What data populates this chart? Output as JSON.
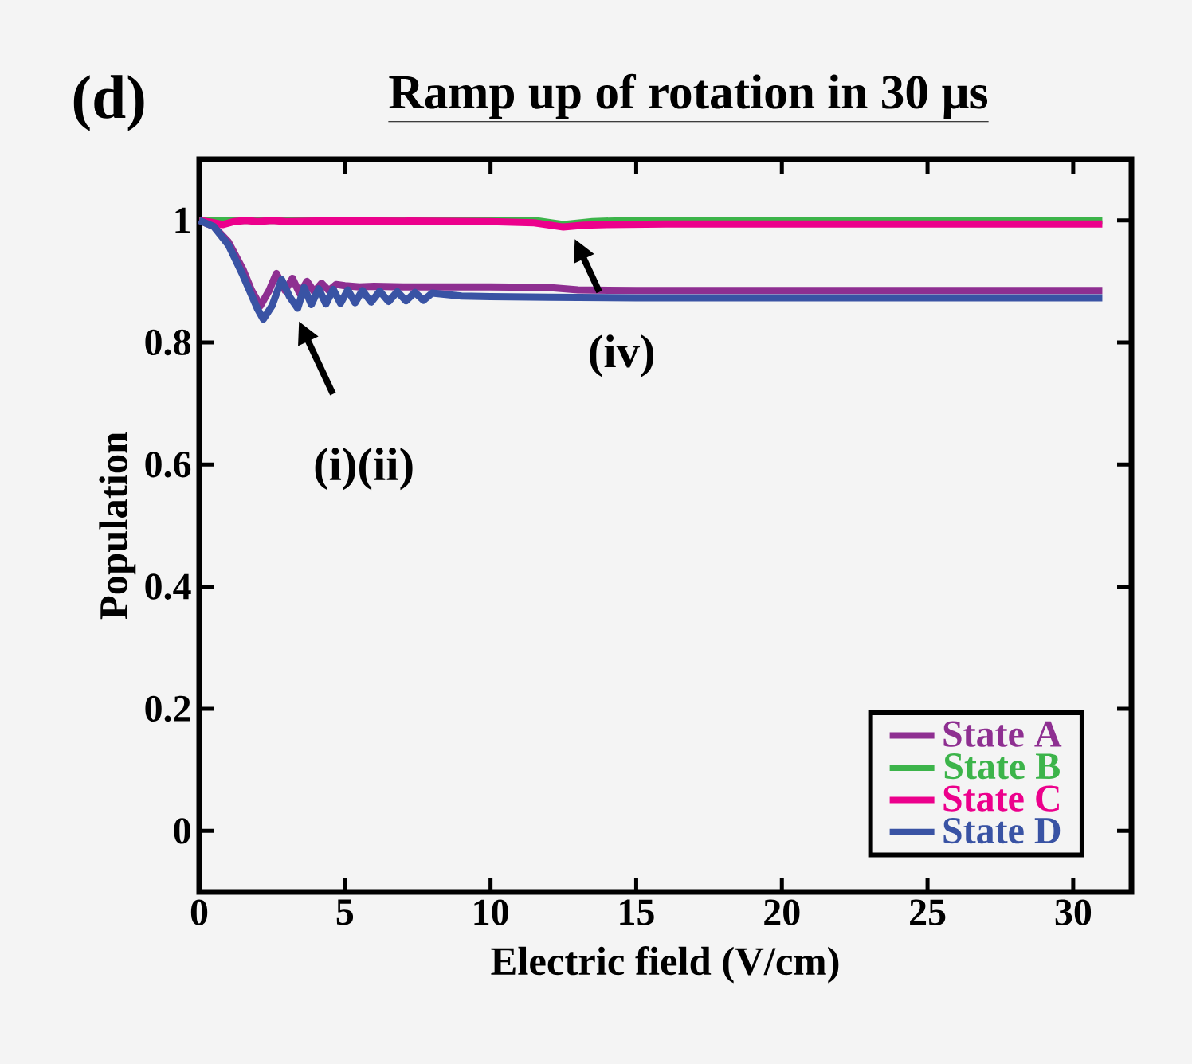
{
  "chart_data": {
    "type": "line",
    "title": "Ramp up of rotation in 30 µs",
    "xlabel": "Electric field (V/cm)",
    "ylabel": "Population",
    "xlim": [
      0,
      32
    ],
    "ylim": [
      -0.1,
      1.1
    ],
    "xticks": [
      0,
      5,
      10,
      15,
      20,
      25,
      30
    ],
    "yticks": [
      0,
      0.2,
      0.4,
      0.6,
      0.8,
      1
    ],
    "grid": false,
    "legend": "bottom right",
    "marker": "none",
    "line_style": "solid",
    "annotations": [
      "(d)",
      {
        "text": "(i)(ii)",
        "x": 3.3,
        "y": 0.85
      },
      {
        "text": "(iv)",
        "x": 12.8,
        "y": 0.985
      }
    ],
    "series": [
      {
        "name": "State A",
        "color": "#8e2f91",
        "x": [
          0,
          0.5,
          1,
          1.5,
          1.8,
          2.1,
          2.4,
          2.65,
          2.95,
          3.2,
          3.45,
          3.7,
          3.95,
          4.2,
          4.45,
          4.7,
          5,
          5.5,
          6,
          7,
          8,
          10,
          12,
          13,
          15,
          20,
          25,
          31
        ],
        "values": [
          1,
          0.99,
          0.965,
          0.92,
          0.885,
          0.86,
          0.885,
          0.913,
          0.885,
          0.905,
          0.88,
          0.9,
          0.883,
          0.897,
          0.885,
          0.895,
          0.893,
          0.891,
          0.892,
          0.891,
          0.891,
          0.891,
          0.89,
          0.886,
          0.885,
          0.885,
          0.885,
          0.885
        ]
      },
      {
        "name": "State B",
        "color": "#3cb44a",
        "x": [
          0,
          1,
          5,
          11.5,
          12.5,
          13.5,
          15,
          31
        ],
        "values": [
          1,
          1,
          1,
          1,
          0.993,
          0.998,
          1,
          1
        ]
      },
      {
        "name": "State C",
        "color": "#ec008c",
        "x": [
          0,
          0.4,
          0.8,
          1.2,
          1.6,
          2,
          2.5,
          3,
          4,
          6,
          10,
          11.5,
          12.5,
          13.2,
          14,
          16,
          20,
          25,
          31
        ],
        "values": [
          1,
          0.997,
          0.993,
          0.998,
          1,
          0.998,
          1,
          0.998,
          0.999,
          0.999,
          0.998,
          0.996,
          0.989,
          0.992,
          0.993,
          0.994,
          0.994,
          0.994,
          0.994
        ]
      },
      {
        "name": "State D",
        "color": "#3953a4",
        "x": [
          0,
          0.5,
          1,
          1.5,
          2,
          2.2,
          2.5,
          2.83,
          3.1,
          3.38,
          3.6,
          3.85,
          4.1,
          4.35,
          4.6,
          4.85,
          5.1,
          5.35,
          5.6,
          5.9,
          6.2,
          6.5,
          6.8,
          7.1,
          7.4,
          7.7,
          8,
          9,
          10,
          12,
          15,
          20,
          25,
          31
        ],
        "values": [
          1,
          0.99,
          0.96,
          0.91,
          0.855,
          0.838,
          0.86,
          0.903,
          0.875,
          0.856,
          0.89,
          0.862,
          0.888,
          0.863,
          0.887,
          0.864,
          0.886,
          0.865,
          0.885,
          0.866,
          0.884,
          0.867,
          0.883,
          0.868,
          0.882,
          0.869,
          0.881,
          0.876,
          0.875,
          0.874,
          0.873,
          0.873,
          0.873,
          0.873
        ]
      }
    ]
  }
}
